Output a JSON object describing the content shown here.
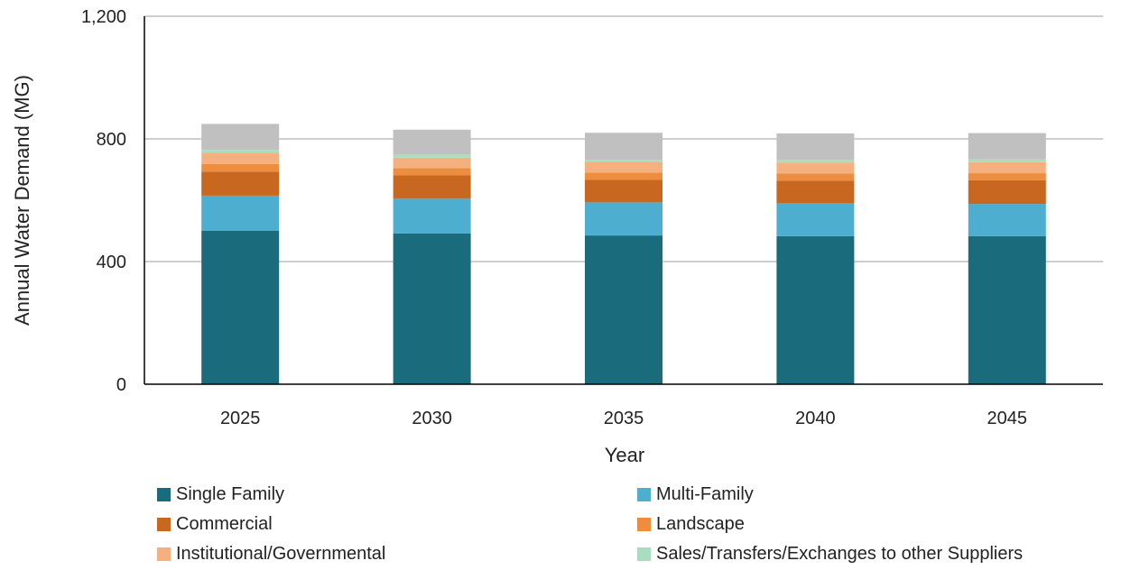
{
  "chart_data": {
    "type": "bar",
    "stacked": true,
    "title": "",
    "xlabel": "Year",
    "ylabel": "Annual Water Demand (MG)",
    "ylim": [
      0,
      1200
    ],
    "yticks": [
      0,
      400,
      800,
      1200
    ],
    "ytick_labels": [
      "0",
      "400",
      "800",
      "1,200"
    ],
    "grid": true,
    "legend_position": "bottom",
    "categories": [
      "2025",
      "2030",
      "2035",
      "2040",
      "2045"
    ],
    "series": [
      {
        "name": "Single Family",
        "color": "#1a6b7b",
        "values": [
          500,
          492,
          485,
          483,
          483
        ]
      },
      {
        "name": "Multi-Family",
        "color": "#4eaecf",
        "values": [
          115,
          113,
          108,
          107,
          105
        ]
      },
      {
        "name": "Commercial",
        "color": "#c8671f",
        "values": [
          78,
          76,
          74,
          74,
          77
        ]
      },
      {
        "name": "Landscape",
        "color": "#ec8d3f",
        "values": [
          25,
          24,
          23,
          23,
          23
        ]
      },
      {
        "name": "Institutional/Governmental",
        "color": "#f4b07e",
        "values": [
          37,
          34,
          36,
          36,
          36
        ]
      },
      {
        "name": "Sales/Transfers/Exchanges to other Suppliers",
        "color": "#a9ddc0",
        "values": [
          9,
          9,
          6,
          9,
          9
        ]
      },
      {
        "name": "",
        "color": "#c0c0c0",
        "values": [
          85,
          82,
          88,
          86,
          86
        ]
      }
    ]
  }
}
